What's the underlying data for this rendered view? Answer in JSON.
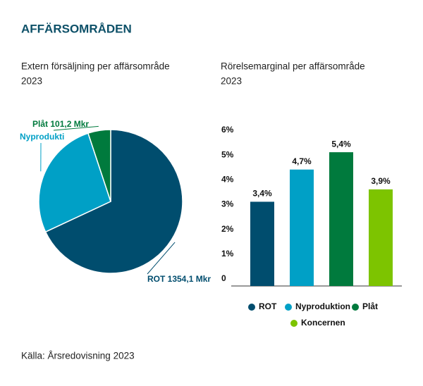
{
  "header": {
    "title": "AFFÄRSOMRÅDEN"
  },
  "chart_data": [
    {
      "type": "pie",
      "title": [
        "Extern försäljning per affärsområde",
        "2023"
      ],
      "values": [
        1354.1,
        535,
        101.2
      ],
      "value_labels": [
        "ROT 1354,1 Mkr",
        "Nyprodukti",
        "Plåt 101,2 Mkr"
      ],
      "colors": [
        "#004d6e",
        "#00a0c6",
        "#007a3d"
      ]
    },
    {
      "type": "bar",
      "title": [
        "Rörelsemarginal per affärsområde",
        "2023"
      ],
      "categories": [
        "ROT",
        "Nyproduktion",
        "Plåt",
        "Koncernen"
      ],
      "values": [
        3.4,
        4.7,
        5.4,
        3.9
      ],
      "value_labels": [
        "3,4%",
        "4,7%",
        "5,4%",
        "3,9%"
      ],
      "colors": [
        "#004d6e",
        "#00a0c6",
        "#007a3d",
        "#7dc400"
      ],
      "ylim": [
        0,
        6
      ],
      "yticks": [
        0,
        {
          "value": 1,
          "label": "1%"
        },
        {
          "value": 2,
          "label": "2%"
        },
        {
          "value": 3,
          "label": "3%"
        },
        {
          "value": 4,
          "label": "4%"
        },
        {
          "value": 5,
          "label": "5%"
        },
        {
          "value": 6,
          "label": "6%"
        }
      ]
    }
  ],
  "source": "Källa: Årsredovisning 2023"
}
